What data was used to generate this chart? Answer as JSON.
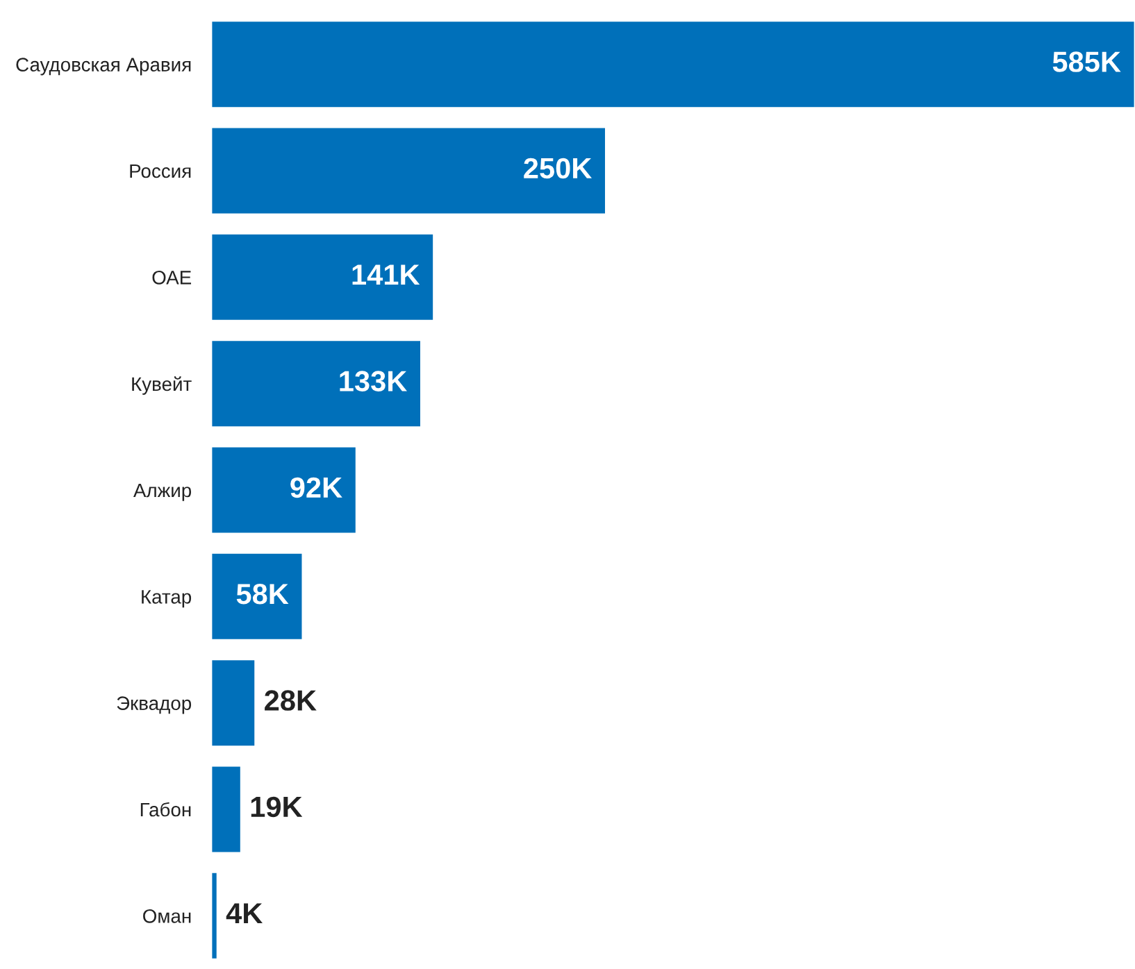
{
  "chart_data": {
    "type": "bar",
    "orientation": "horizontal",
    "categories": [
      "Саудовская Аравия",
      "Россия",
      "ОАЕ",
      "Кувейт",
      "Алжир",
      "Катар",
      "Эквадор",
      "Габон",
      "Оман"
    ],
    "values": [
      585,
      250,
      141,
      133,
      92,
      58,
      28,
      19,
      4
    ],
    "value_labels": [
      "585K",
      "250K",
      "141K",
      "133K",
      "92K",
      "58K",
      "28K",
      "19K",
      "4K"
    ],
    "color": "#0070ba",
    "tick_labels": "y",
    "grid": false,
    "legend": false
  }
}
